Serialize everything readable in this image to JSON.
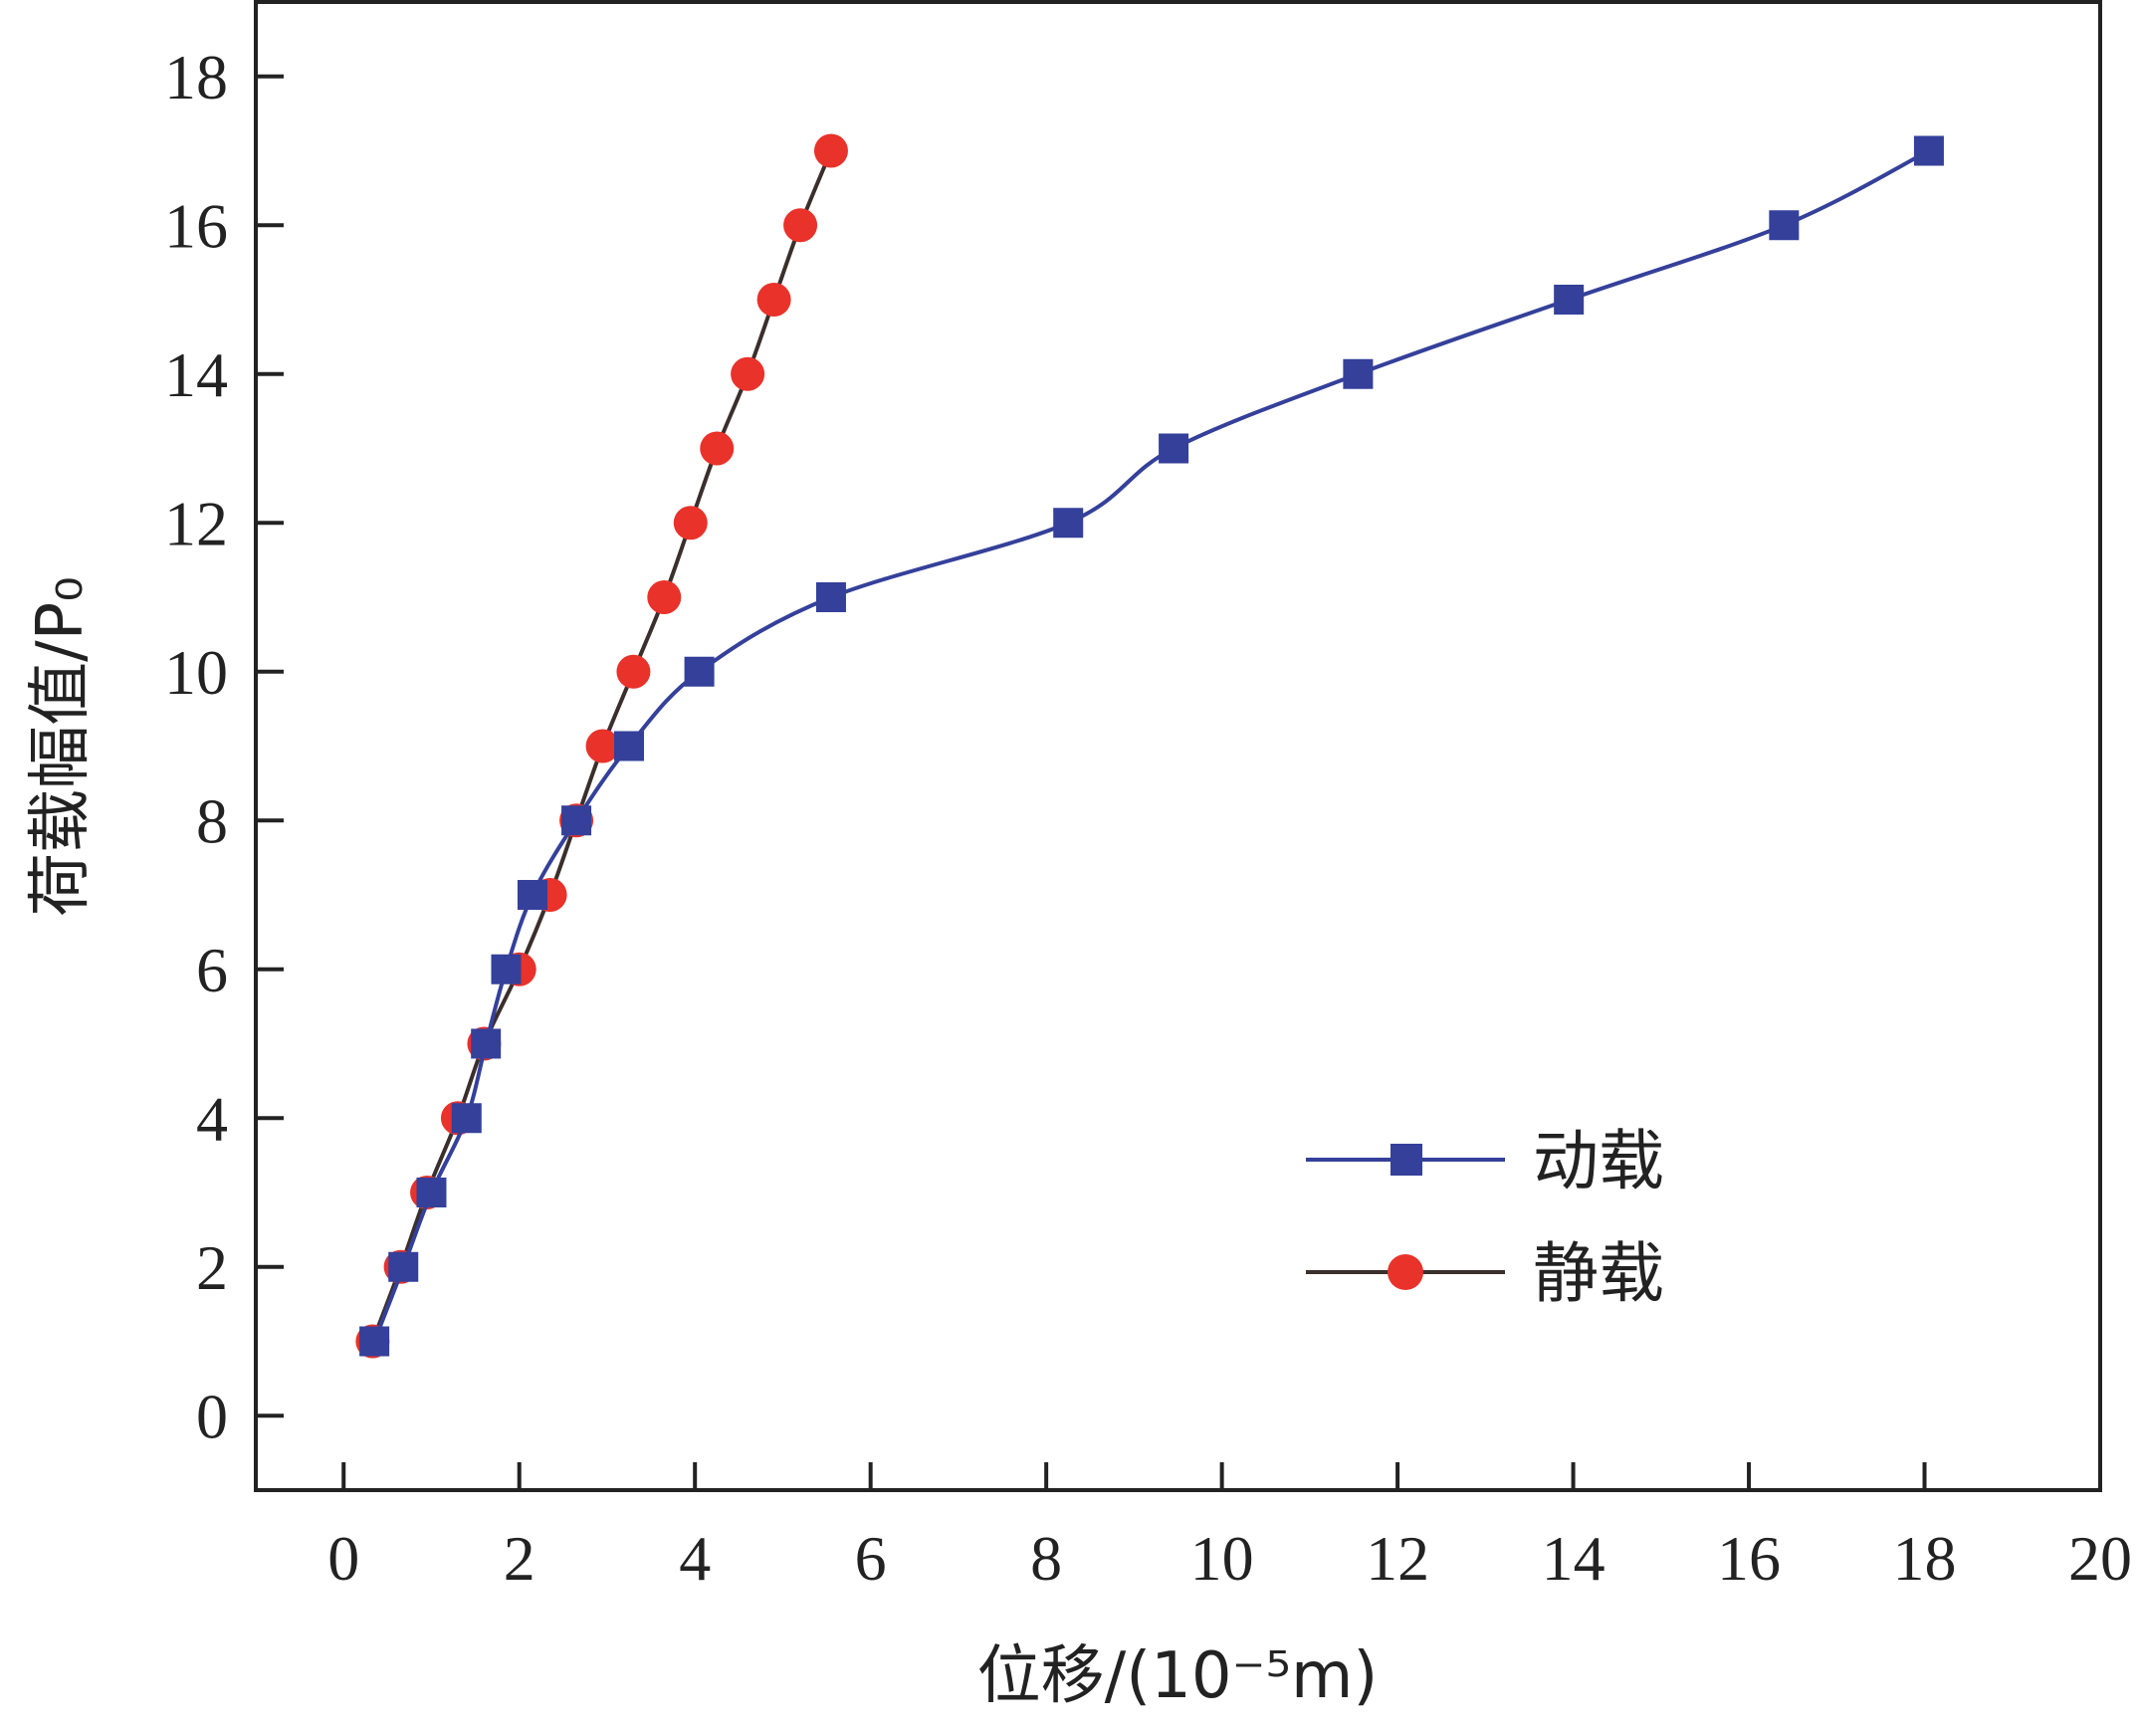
{
  "chart_data": {
    "type": "line",
    "title": "",
    "xlabel": "位移/(10⁻⁵m)",
    "ylabel": "荷载幅值/P₀",
    "xlim": [
      -1,
      20
    ],
    "ylim": [
      -1,
      19
    ],
    "xticks": [
      "0",
      "2",
      "4",
      "6",
      "8",
      "10",
      "12",
      "14",
      "16",
      "18",
      "20"
    ],
    "yticks": [
      "0",
      "2",
      "4",
      "6",
      "8",
      "10",
      "12",
      "14",
      "16",
      "18"
    ],
    "grid": false,
    "legend_position": "bottom-right",
    "series": [
      {
        "name": "动载",
        "color": "#34409a",
        "marker": "square",
        "x": [
          0.35,
          0.68,
          1.0,
          1.4,
          1.62,
          1.85,
          2.15,
          2.65,
          3.25,
          4.05,
          5.55,
          8.25,
          9.45,
          11.55,
          13.95,
          16.4,
          18.05
        ],
        "y": [
          1,
          2,
          3,
          4,
          5,
          6,
          7,
          8,
          9,
          10,
          11,
          12,
          13,
          14,
          15,
          16,
          17
        ]
      },
      {
        "name": "静载",
        "color": "#e8322a",
        "line_color": "#3a2f2c",
        "marker": "circle",
        "x": [
          0.33,
          0.65,
          0.95,
          1.3,
          1.6,
          2.0,
          2.35,
          2.65,
          2.95,
          3.3,
          3.65,
          3.95,
          4.25,
          4.6,
          4.9,
          5.2,
          5.55
        ],
        "y": [
          1,
          2,
          3,
          4,
          5,
          6,
          7,
          8,
          9,
          10,
          11,
          12,
          13,
          14,
          15,
          16,
          17
        ]
      }
    ]
  }
}
